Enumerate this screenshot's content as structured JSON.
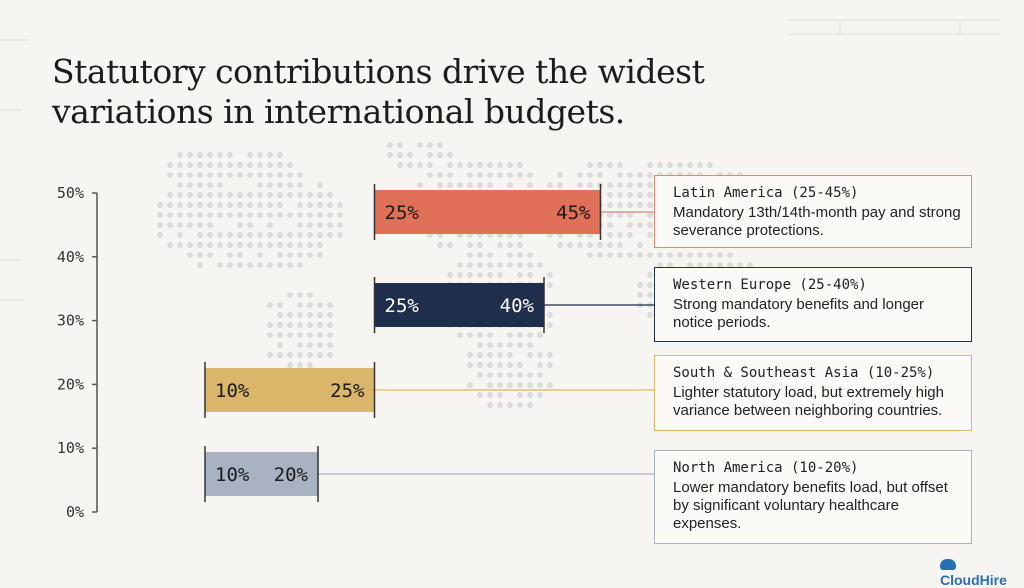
{
  "title": "Statutory contributions drive the widest variations in international budgets.",
  "brand": "CloudHire",
  "chart_data": {
    "type": "bar",
    "subtype": "floating-range",
    "orientation": "horizontal-ranges-on-vertical-scale",
    "y_axis": {
      "min": 0,
      "max": 50,
      "ticks": [
        0,
        10,
        20,
        30,
        40,
        50
      ],
      "tick_labels": [
        "0%",
        "10%",
        "20%",
        "30%",
        "40%",
        "50%"
      ]
    },
    "grid": false,
    "legend": "none",
    "series": [
      {
        "category": "Latin America",
        "low": 25,
        "high": 45,
        "low_label": "25%",
        "high_label": "45%",
        "color": "#e07058",
        "label_color": "#1a1a1a",
        "callout_title": "Latin America (25-45%)",
        "callout_text": "Mandatory 13th/14th-month pay and strong severance protections.",
        "callout_border": "#d48b78"
      },
      {
        "category": "Western Europe",
        "low": 25,
        "high": 40,
        "low_label": "25%",
        "high_label": "40%",
        "color": "#1f2e4a",
        "label_color": "#ffffff",
        "callout_title": "Western Europe (25-40%)",
        "callout_text": "Strong mandatory benefits and longer notice periods.",
        "callout_border": "#1f2e4a"
      },
      {
        "category": "South & Southeast Asia",
        "low": 10,
        "high": 25,
        "low_label": "10%",
        "high_label": "25%",
        "color": "#d9b66a",
        "label_color": "#1a1a1a",
        "callout_title": "South & Southeast Asia (10-25%)",
        "callout_text": "Lighter statutory load, but extremely high variance between neighboring countries.",
        "callout_border": "#d9b66a"
      },
      {
        "category": "North America",
        "low": 10,
        "high": 20,
        "low_label": "10%",
        "high_label": "20%",
        "color": "#a8b2c0",
        "label_color": "#1a1a1a",
        "callout_title": "North America (10-20%)",
        "callout_text": "Lower mandatory benefits load, but offset by significant voluntary healthcare expenses.",
        "callout_border": "#a8b2c0"
      }
    ]
  }
}
